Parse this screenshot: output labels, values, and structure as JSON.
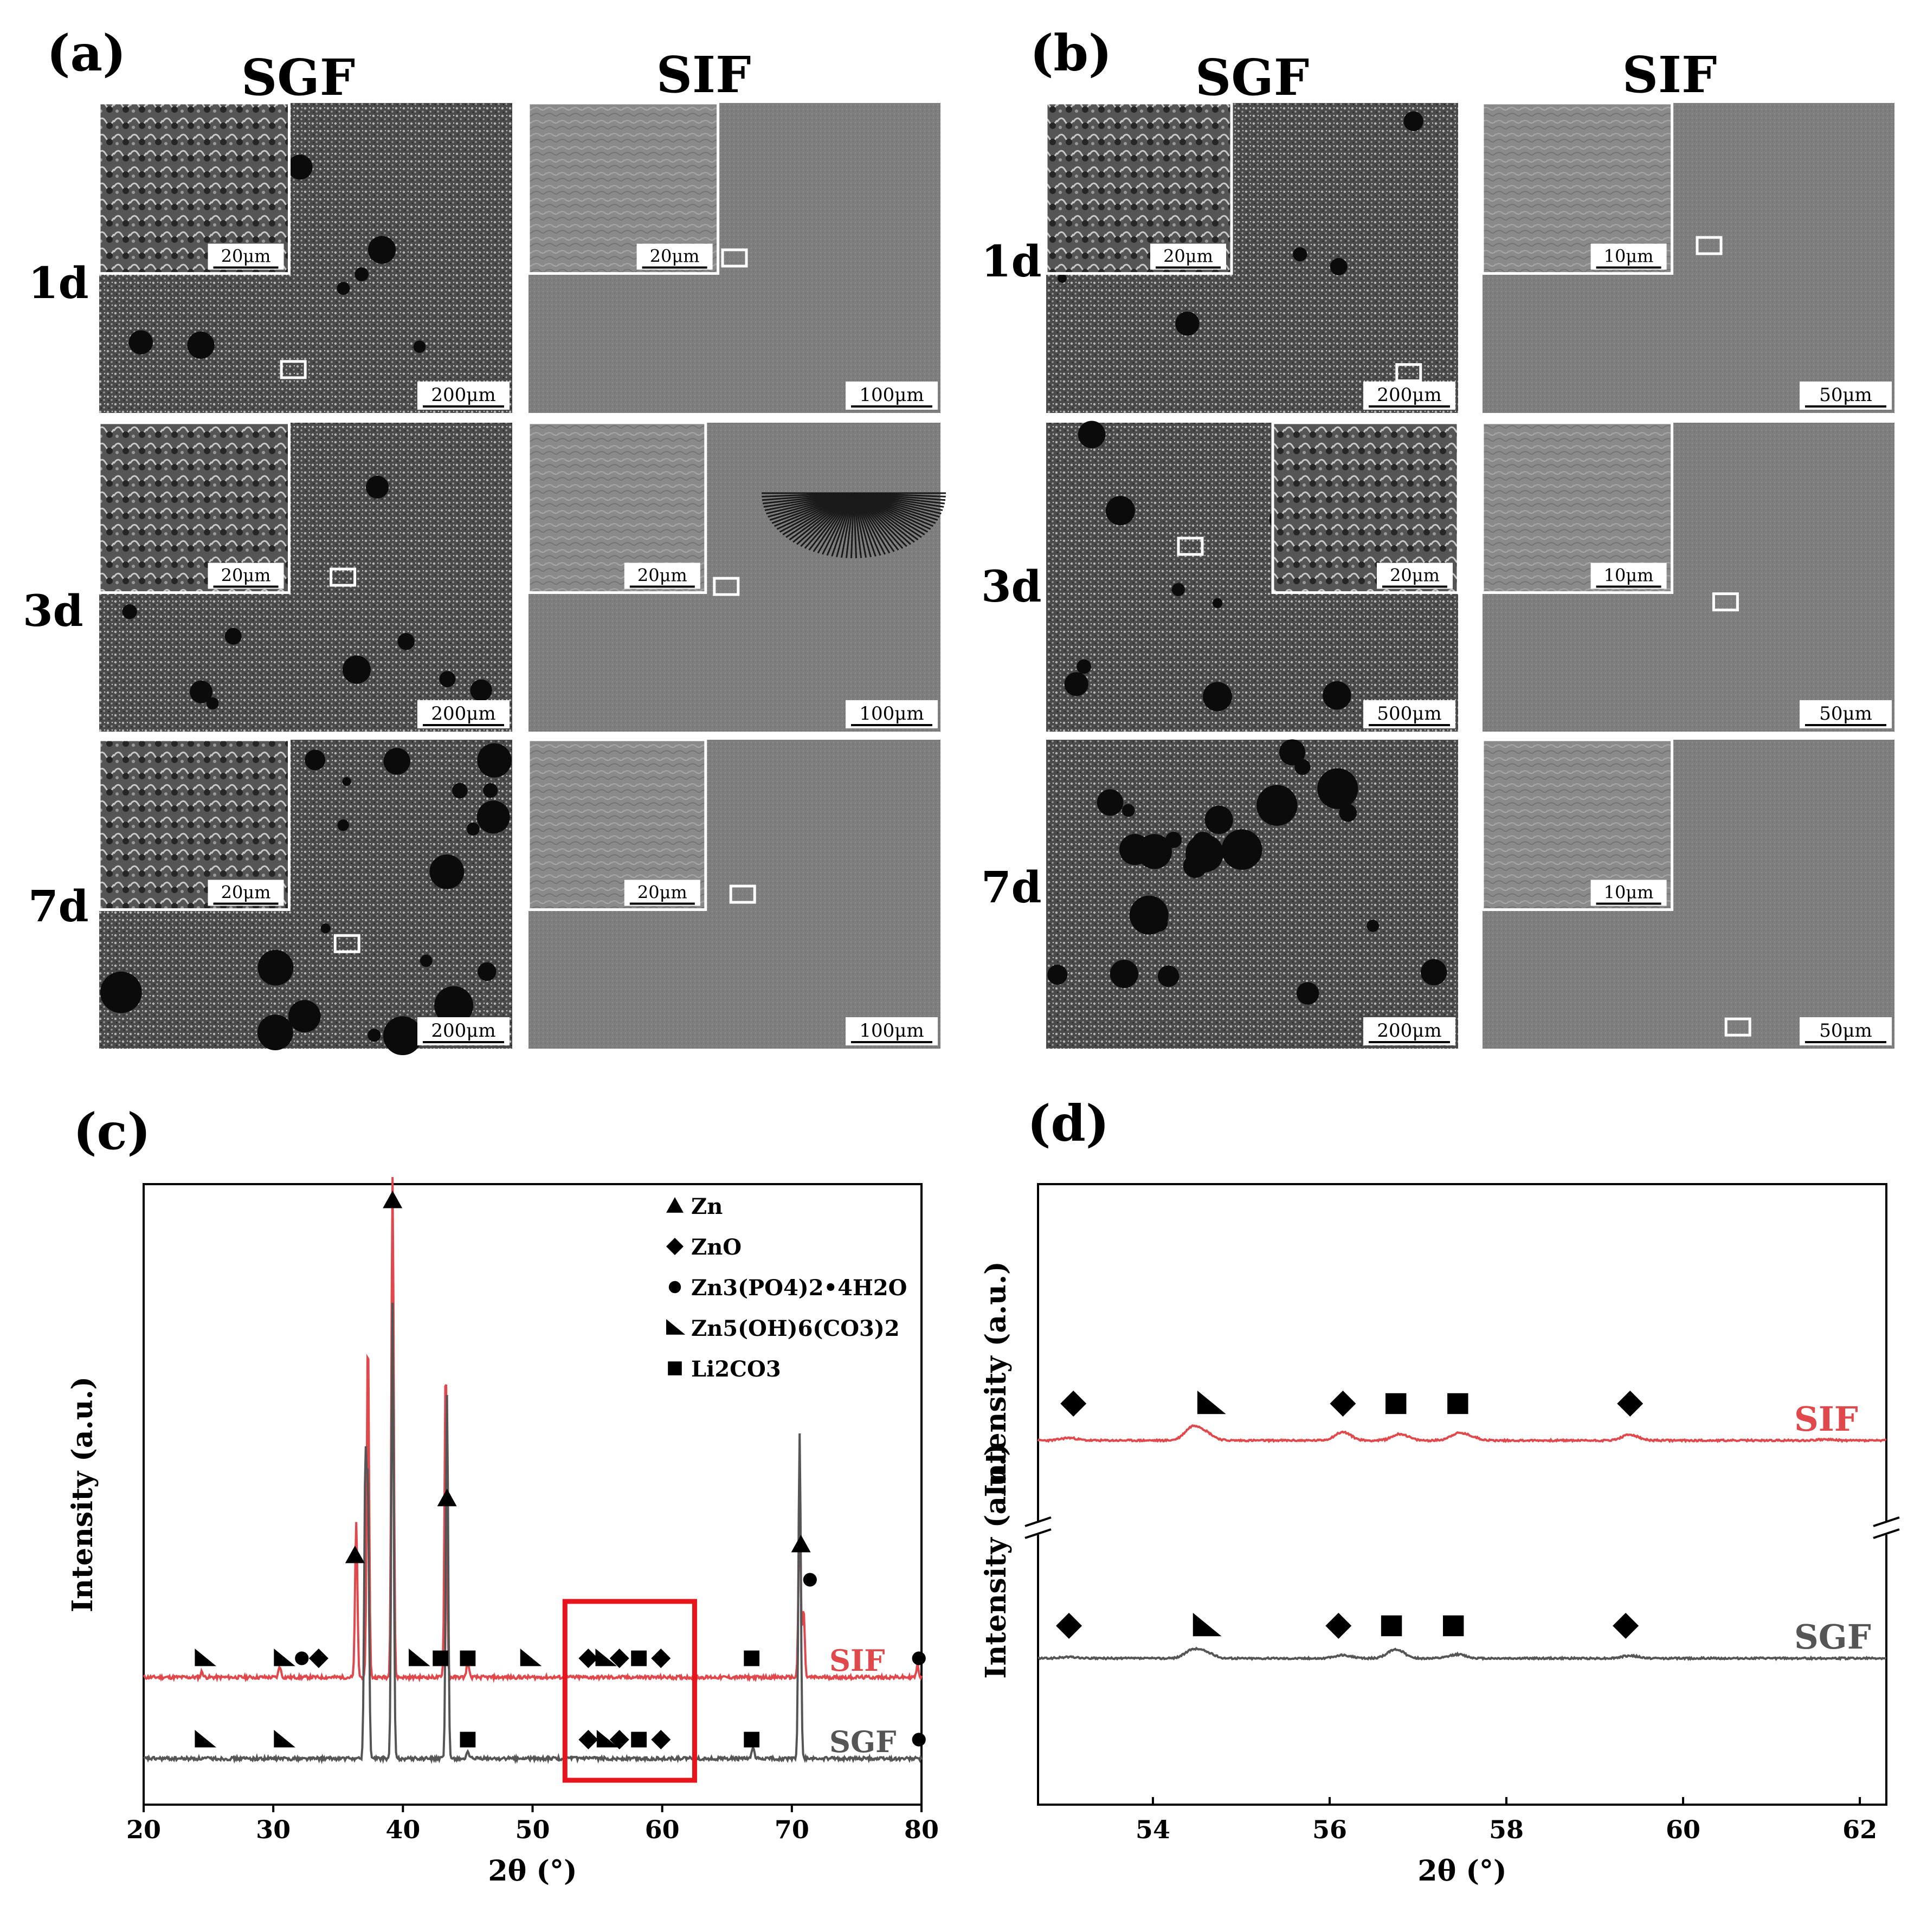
{
  "figure": {
    "panel_a": "(a)",
    "panel_b": "(b)",
    "panel_c": "(c)",
    "panel_d": "(d)",
    "col_sgf": "SGF",
    "col_sif": "SIF",
    "rows": [
      "1d",
      "3d",
      "7d"
    ]
  },
  "sem_scale_bars": {
    "a_sgf": {
      "main": [
        "200μm",
        "200μm",
        "200μm"
      ],
      "inset": [
        "20μm",
        "20μm",
        "20μm"
      ]
    },
    "a_sif": {
      "main": [
        "100μm",
        "100μm",
        "100μm"
      ],
      "inset": [
        "20μm",
        "20μm",
        "20μm"
      ]
    },
    "b_sgf": {
      "main": [
        "200μm",
        "500μm",
        "200μm"
      ],
      "inset": [
        "20μm",
        "20μm",
        ""
      ]
    },
    "b_sif": {
      "main": [
        "50μm",
        "50μm",
        "50μm"
      ],
      "inset": [
        "10μm",
        "10μm",
        "10μm"
      ]
    }
  },
  "colors": {
    "sif": "#e0484b",
    "sgf": "#555555",
    "zoom_box": "#e8141b",
    "sem_dark": "#3a3a3a",
    "sem_light": "#8c8c8c"
  },
  "chart_data": [
    {
      "id": "c",
      "type": "line",
      "xlabel": "2θ (°)",
      "ylabel": "Intensity (a.u.)",
      "xlim": [
        20,
        80
      ],
      "xticks": [
        20,
        30,
        40,
        50,
        60,
        70,
        80
      ],
      "legend": [
        {
          "marker": "triangle",
          "text": "Zn"
        },
        {
          "marker": "diamond",
          "text": "ZnO"
        },
        {
          "marker": "circle",
          "text": "Zn3(PO4)2•4H2O"
        },
        {
          "marker": "half-triangle",
          "text": "Zn5(OH)6(CO3)2"
        },
        {
          "marker": "square",
          "text": "Li2CO3"
        }
      ],
      "series": [
        {
          "name": "SIF",
          "baseline": 1.0,
          "peaks": [
            [
              36.4,
              0.27
            ],
            [
              37.3,
              0.6
            ],
            [
              39.2,
              0.88
            ],
            [
              43.3,
              0.55
            ],
            [
              70.6,
              0.29
            ],
            [
              70.9,
              0.12
            ],
            [
              45.0,
              0.03
            ],
            [
              30.5,
              0.02
            ],
            [
              24.5,
              0.01
            ],
            [
              79.7,
              0.02
            ]
          ]
        },
        {
          "name": "SGF",
          "baseline": 0.0,
          "peaks": [
            [
              37.1,
              0.5
            ],
            [
              37.3,
              0.45
            ],
            [
              39.2,
              0.8
            ],
            [
              43.4,
              0.64
            ],
            [
              70.6,
              0.57
            ],
            [
              67.0,
              0.02
            ],
            [
              45.0,
              0.01
            ]
          ]
        }
      ],
      "markers": {
        "SIF": [
          [
            "triangle",
            36.3
          ],
          [
            "triangle",
            39.2
          ],
          [
            "triangle",
            43.4
          ],
          [
            "triangle",
            70.7
          ],
          [
            "circle",
            71.4
          ],
          [
            "circle",
            79.8
          ],
          [
            "half-triangle",
            24.7
          ],
          [
            "half-triangle",
            30.8
          ],
          [
            "circle",
            32.2
          ],
          [
            "diamond",
            33.5
          ],
          [
            "half-triangle",
            41.2
          ],
          [
            "square",
            42.9
          ],
          [
            "square",
            45.0
          ],
          [
            "half-triangle",
            49.8
          ],
          [
            "diamond",
            54.3
          ],
          [
            "half-triangle",
            55.6
          ],
          [
            "diamond",
            56.7
          ],
          [
            "square",
            58.2
          ],
          [
            "diamond",
            59.9
          ],
          [
            "square",
            66.9
          ]
        ],
        "SGF": [
          [
            "half-triangle",
            24.7
          ],
          [
            "half-triangle",
            30.8
          ],
          [
            "square",
            45.0
          ],
          [
            "diamond",
            54.3
          ],
          [
            "half-triangle",
            55.7
          ],
          [
            "diamond",
            56.7
          ],
          [
            "square",
            58.2
          ],
          [
            "diamond",
            59.9
          ],
          [
            "square",
            66.9
          ],
          [
            "circle",
            79.8
          ]
        ]
      },
      "highlight_box_x": [
        52.5,
        62.5
      ]
    },
    {
      "id": "d",
      "type": "line",
      "xlabel": "2θ (°)",
      "ylabel": "Intensity (a.u.)",
      "xlim": [
        52.7,
        62.3
      ],
      "xticks": [
        54,
        56,
        58,
        60,
        62
      ],
      "broken_y_axis": true,
      "series": [
        {
          "name": "SIF",
          "peaks": [
            [
              53.05,
              0.1
            ],
            [
              54.45,
              0.5
            ],
            [
              54.6,
              0.25
            ],
            [
              56.15,
              0.32
            ],
            [
              56.8,
              0.25
            ],
            [
              57.45,
              0.25
            ],
            [
              57.6,
              0.12
            ],
            [
              59.4,
              0.22
            ],
            [
              61.6,
              0.04
            ]
          ]
        },
        {
          "name": "SGF",
          "peaks": [
            [
              53.05,
              0.05
            ],
            [
              54.45,
              0.3
            ],
            [
              54.6,
              0.2
            ],
            [
              56.15,
              0.12
            ],
            [
              56.75,
              0.35
            ],
            [
              57.45,
              0.15
            ],
            [
              59.4,
              0.1
            ]
          ]
        }
      ],
      "markers": {
        "SIF": [
          [
            "diamond",
            53.1
          ],
          [
            "half-triangle",
            54.65
          ],
          [
            "diamond",
            56.15
          ],
          [
            "square",
            56.75
          ],
          [
            "square",
            57.45
          ],
          [
            "diamond",
            59.4
          ]
        ],
        "SGF": [
          [
            "diamond",
            53.05
          ],
          [
            "half-triangle",
            54.6
          ],
          [
            "diamond",
            56.1
          ],
          [
            "square",
            56.7
          ],
          [
            "square",
            57.4
          ],
          [
            "diamond",
            59.35
          ]
        ]
      }
    }
  ]
}
